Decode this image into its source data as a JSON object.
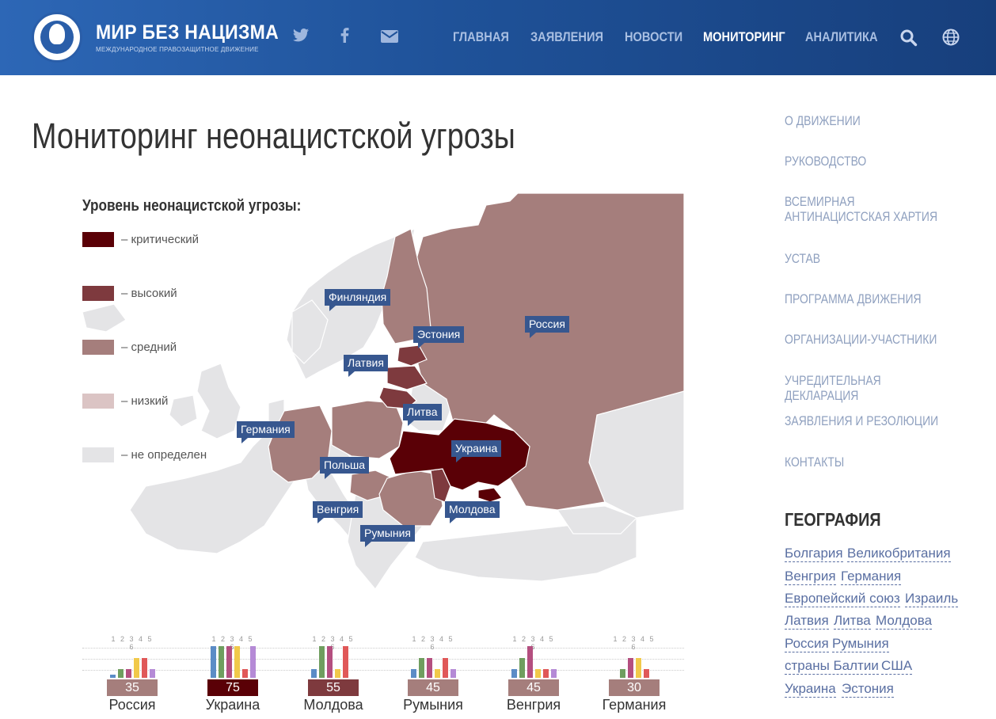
{
  "header": {
    "brand_title": "МИР БЕЗ НАЦИЗМА",
    "brand_subtitle": "МЕЖДУНАРОДНОЕ ПРАВОЗАЩИТНОЕ ДВИЖЕНИЕ",
    "social_icons": [
      "twitter-icon",
      "facebook-icon",
      "mail-icon"
    ],
    "nav": [
      "ГЛАВНАЯ",
      "ЗАЯВЛЕНИЯ",
      "НОВОСТИ",
      "МОНИТОРИНГ",
      "АНАЛИТИКА"
    ],
    "active_nav": "МОНИТОРИНГ",
    "icons": [
      "search-icon",
      "globe-icon"
    ]
  },
  "page": {
    "title": "Мониторинг неонацистской угрозы"
  },
  "legend": {
    "title": "Уровень неонацистской угрозы:",
    "items": [
      {
        "label": "– критический",
        "color": "#5a0006"
      },
      {
        "label": "– высокий",
        "color": "#7e3a3e"
      },
      {
        "label": "– средний",
        "color": "#a57e7c"
      },
      {
        "label": "– низкий",
        "color": "#dbc4c4"
      },
      {
        "label": "– не определен",
        "color": "#e4e4e6"
      }
    ]
  },
  "map_labels": {
    "finland": "Финляндия",
    "russia": "Россия",
    "estonia": "Эстония",
    "latvia": "Латвия",
    "lithuania": "Литва",
    "germany": "Германия",
    "ukraine": "Украина",
    "poland": "Польша",
    "hungary": "Венгрия",
    "moldova": "Молдова",
    "romania": "Румыния"
  },
  "stats": {
    "scale_labels": "1 2 3 4 5 6",
    "bar_colors": [
      "#5b8cc6",
      "#6f9e5f",
      "#b44f7f",
      "#f1c94a",
      "#e05858",
      "#b58ad6"
    ],
    "countries": [
      {
        "name": "Россия",
        "score": "35",
        "score_color": "#a57e7c",
        "bars": [
          0.1,
          0.25,
          0.25,
          0.6,
          0.6,
          0.25
        ]
      },
      {
        "name": "Украина",
        "score": "75",
        "score_color": "#5a0006",
        "bars": [
          0.95,
          0.95,
          0.95,
          0.95,
          0.25,
          0.95
        ]
      },
      {
        "name": "Молдова",
        "score": "55",
        "score_color": "#7e3a3e",
        "bars": [
          0.25,
          0.95,
          0.95,
          0.25,
          0.95,
          0.0
        ]
      },
      {
        "name": "Румыния",
        "score": "45",
        "score_color": "#a57e7c",
        "bars": [
          0.25,
          0.6,
          0.6,
          0.25,
          0.6,
          0.25
        ]
      },
      {
        "name": "Венгрия",
        "score": "45",
        "score_color": "#a57e7c",
        "bars": [
          0.25,
          0.6,
          0.95,
          0.25,
          0.25,
          0.25
        ]
      },
      {
        "name": "Германия",
        "score": "30",
        "score_color": "#a57e7c",
        "bars": [
          0.0,
          0.25,
          0.6,
          0.6,
          0.25,
          0.0
        ]
      }
    ]
  },
  "sidebar": {
    "links": [
      "О ДВИЖЕНИИ",
      "РУКОВОДСТВО",
      "ВСЕМИРНАЯ АНТИНАЦИСТСКАЯ ХАРТИЯ",
      "УСТАВ",
      "ПРОГРАММА ДВИЖЕНИЯ",
      "ОРГАНИЗАЦИИ-УЧАСТНИКИ",
      "УЧРЕДИТЕЛЬНАЯ ДЕКЛАРАЦИЯ",
      "ЗАЯВЛЕНИЯ И РЕЗОЛЮЦИИ",
      "КОНТАКТЫ"
    ],
    "geo_title": "ГЕОГРАФИЯ",
    "tags": [
      "Болгария",
      "Великобритания",
      "Венгрия",
      "Германия",
      "Европейский союз",
      "Израиль",
      "Латвия",
      "Литва",
      "Молдова",
      "Россия",
      "Румыния",
      "страны Балтии",
      "США",
      "Украина",
      "Эстония"
    ]
  }
}
